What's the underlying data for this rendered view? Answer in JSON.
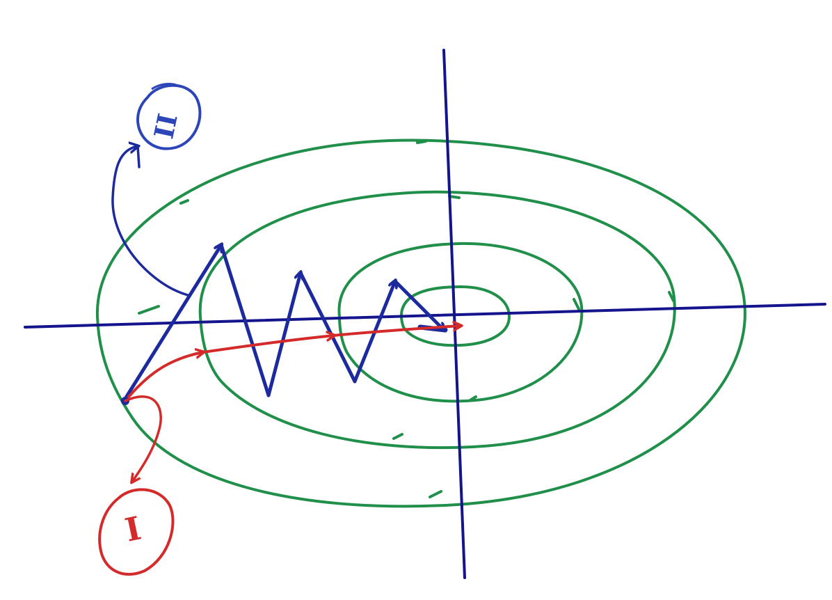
{
  "diagram": {
    "labels": {
      "path_one": "I",
      "path_two": "II"
    },
    "colors": {
      "contour": "#1f8f4a",
      "axes": "#14148c",
      "path_one": "#d42a2a",
      "path_two": "#1d2a9e",
      "label_two": "#2c46b8"
    },
    "contour_count": 4,
    "arrow_heads_on_paths": true
  }
}
